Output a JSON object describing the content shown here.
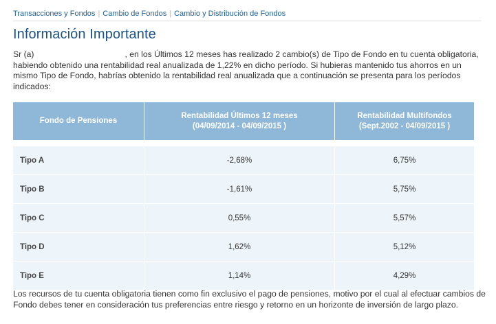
{
  "breadcrumb": {
    "items": [
      "Transacciones y Fondos",
      "Cambio de Fondos",
      "Cambio y Distribución de Fondos"
    ]
  },
  "page": {
    "title": "Información Importante"
  },
  "intro": {
    "prefix": "Sr (a)",
    "text": ", en los Últimos 12 meses has realizado 2 cambio(s) de Tipo de Fondo en tu cuenta obligatoria, habiendo obtenido una rentabilidad real anualizada de 1,22% en dicho período. Si hubieras mantenido tus ahorros en un mismo Tipo de Fondo, habrías obtenido la rentabilidad real anualizada que a continuación se presenta para los períodos indicados:"
  },
  "table": {
    "headers": [
      {
        "line1": "Fondo de Pensiones",
        "line2": ""
      },
      {
        "line1": "Rentabilidad Últimos 12 meses",
        "line2": "(04/09/2014 - 04/09/2015 )"
      },
      {
        "line1": "Rentabilidad Multifondos",
        "line2": "(Sept.2002 - 04/09/2015 )"
      }
    ],
    "rows": [
      {
        "fund": "Tipo A",
        "last12": "-2,68%",
        "multi": "6,75%"
      },
      {
        "fund": "Tipo B",
        "last12": "-1,61%",
        "multi": "5,75%"
      },
      {
        "fund": "Tipo C",
        "last12": "0,55%",
        "multi": "5,57%"
      },
      {
        "fund": "Tipo D",
        "last12": "1,62%",
        "multi": "5,12%"
      },
      {
        "fund": "Tipo E",
        "last12": "1,14%",
        "multi": "4,29%"
      }
    ]
  },
  "footer": {
    "text": "Los recursos de tu cuenta obligatoria tienen como fin exclusivo el pago de pensiones, motivo por el cual al efectuar cambios de Fondo debes tener en consideración tus preferencias entre riesgo y retorno en un horizonte de inversión de largo plazo."
  },
  "colors": {
    "header_bg": "#8fb8d8",
    "row_bg": "#eef5fa",
    "title": "#1b5387",
    "link": "#1f5f94"
  }
}
